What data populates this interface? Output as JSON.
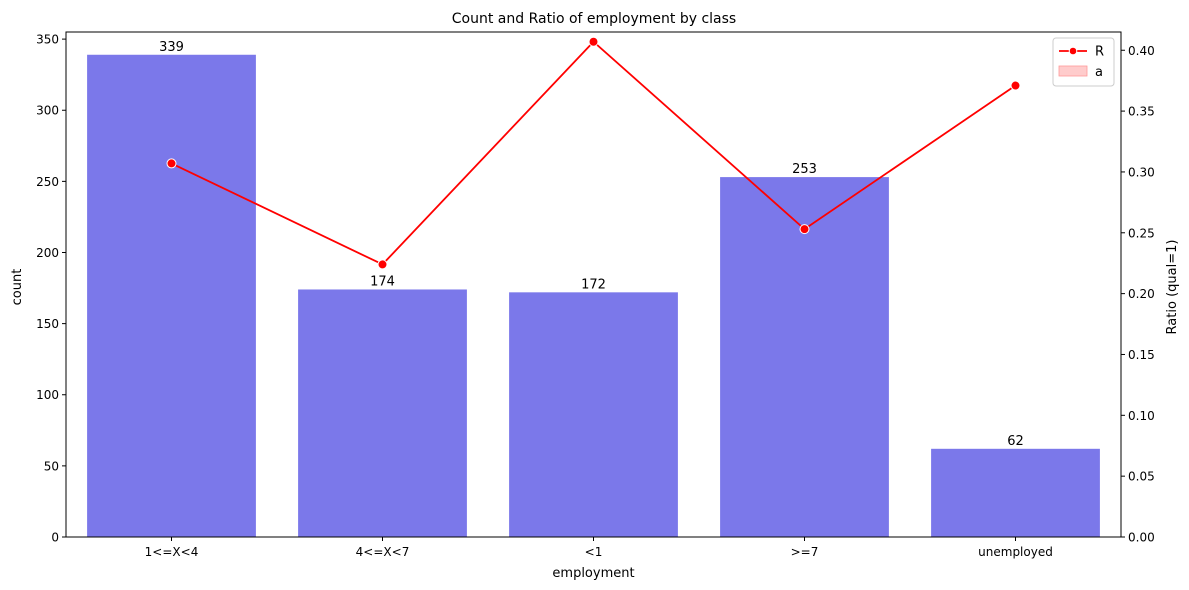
{
  "chart_data": {
    "type": "bar",
    "title": "Count and Ratio of employment by class",
    "xlabel": "employment",
    "ylabel": "count",
    "y2label": "Ratio (qual=1)",
    "categories": [
      "1<=X<4",
      "4<=X<7",
      "<1",
      ">=7",
      "unemployed"
    ],
    "series": [
      {
        "name": "count",
        "type": "bar",
        "axis": "left",
        "values": [
          339,
          174,
          172,
          253,
          62
        ]
      },
      {
        "name": "R",
        "type": "line",
        "axis": "right",
        "values": [
          0.307,
          0.224,
          0.407,
          0.253,
          0.371
        ]
      }
    ],
    "ylim": [
      0,
      355
    ],
    "y2lim": [
      0,
      0.415
    ],
    "yticks": [
      0,
      50,
      100,
      150,
      200,
      250,
      300,
      350
    ],
    "y2ticks": [
      "0.00",
      "0.05",
      "0.10",
      "0.15",
      "0.20",
      "0.25",
      "0.30",
      "0.35",
      "0.40"
    ],
    "legend": {
      "placement": "top-right",
      "items": [
        {
          "label": "R",
          "kind": "line-marker"
        },
        {
          "label": "a",
          "kind": "patch"
        }
      ]
    },
    "colors": {
      "bar": "#7b78ea",
      "line": "#ff0000",
      "marker_edge": "#ffffff",
      "legend_patch_fill": "#ffcccc",
      "legend_patch_edge": "#ff9999"
    },
    "grid": false
  }
}
